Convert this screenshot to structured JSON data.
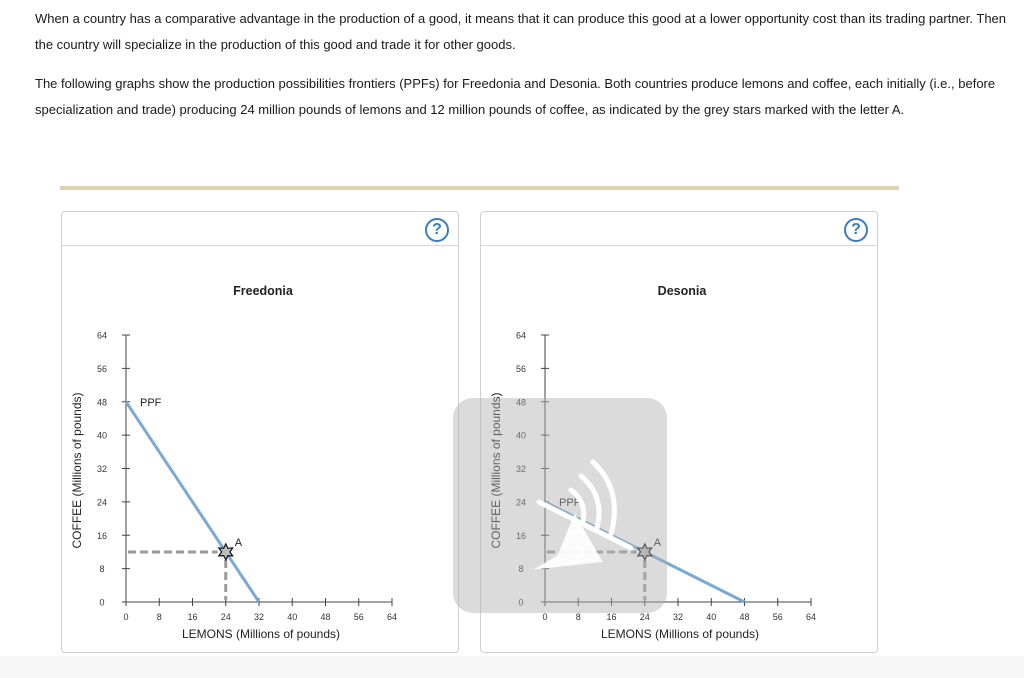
{
  "intro": {
    "p1": "When a country has a comparative advantage in the production of a good, it means that it can produce this good at a lower opportunity cost than its trading partner. Then the country will specialize in the production of this good and trade it for other goods.",
    "p2": "The following graphs show the production possibilities frontiers (PPFs) for Freedonia and Desonia. Both countries produce lemons and coffee, each initially (i.e., before specialization and trade) producing 24 million pounds of lemons and 12 million pounds of coffee, as indicated by the grey stars marked with the letter A."
  },
  "help_label": "?",
  "colors": {
    "ppf": "#7aaad4",
    "dashed": "#9a9a9a",
    "axis": "#444444",
    "star_fill": "#bdbdbd"
  },
  "chart_data": [
    {
      "type": "line",
      "title": "Freedonia",
      "xlabel": "LEMONS (Millions of pounds)",
      "ylabel": "COFFEE (Millions of pounds)",
      "xlim": [
        0,
        64
      ],
      "ylim": [
        0,
        64
      ],
      "xticks": [
        0,
        8,
        16,
        24,
        32,
        40,
        48,
        56,
        64
      ],
      "yticks": [
        0,
        8,
        16,
        24,
        32,
        40,
        48,
        56,
        64
      ],
      "series": [
        {
          "name": "PPF",
          "x": [
            0,
            32
          ],
          "y": [
            48,
            0
          ]
        }
      ],
      "points": [
        {
          "label": "A",
          "x": 24,
          "y": 12
        }
      ]
    },
    {
      "type": "line",
      "title": "Desonia",
      "xlabel": "LEMONS (Millions of pounds)",
      "ylabel": "COFFEE (Millions of pounds)",
      "xlim": [
        0,
        64
      ],
      "ylim": [
        0,
        64
      ],
      "xticks": [
        0,
        8,
        16,
        24,
        32,
        40,
        48,
        56,
        64
      ],
      "yticks": [
        0,
        8,
        16,
        24,
        32,
        40,
        48,
        56,
        64
      ],
      "series": [
        {
          "name": "PPF",
          "x": [
            0,
            48
          ],
          "y": [
            24,
            0
          ]
        }
      ],
      "points": [
        {
          "label": "A",
          "x": 24,
          "y": 12
        }
      ]
    }
  ]
}
